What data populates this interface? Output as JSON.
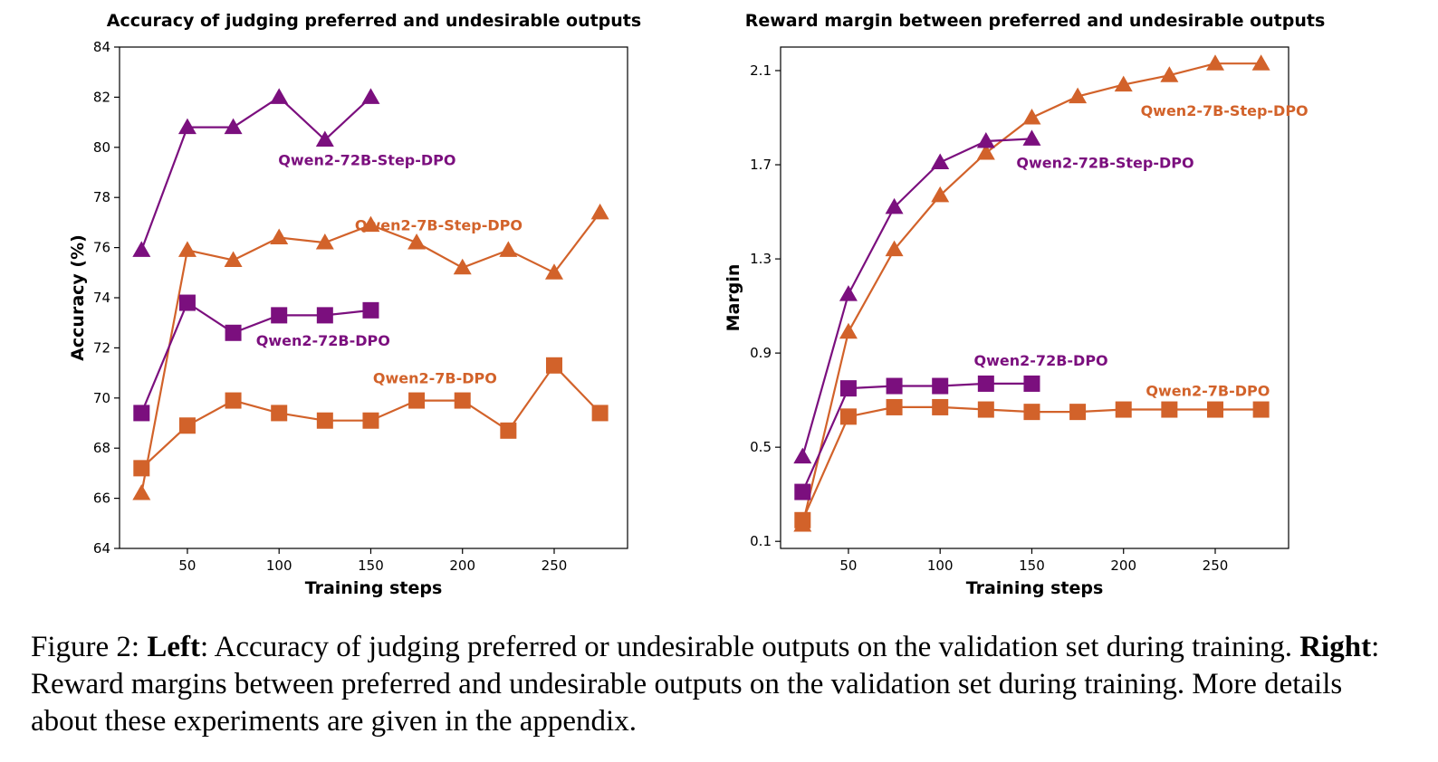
{
  "colors": {
    "purple": "#7b0f7e",
    "orange": "#d2622a"
  },
  "chart_data": [
    {
      "type": "line",
      "title": "Accuracy of judging preferred and undesirable outputs",
      "xlabel": "Training steps",
      "ylabel": "Accuracy (%)",
      "xlim": [
        13,
        290
      ],
      "ylim": [
        64,
        84
      ],
      "xticks": [
        50,
        100,
        150,
        200,
        250
      ],
      "yticks": [
        64,
        66,
        68,
        70,
        72,
        74,
        76,
        78,
        80,
        82,
        84
      ],
      "series": [
        {
          "name": "Qwen2-72B-Step-DPO",
          "color": "purple",
          "marker": "triangle",
          "x": [
            25,
            50,
            75,
            100,
            125,
            150
          ],
          "y": [
            75.9,
            80.8,
            80.8,
            82.0,
            80.3,
            82.0
          ],
          "label_pos": [
            148,
            79.5
          ]
        },
        {
          "name": "Qwen2-7B-Step-DPO",
          "color": "orange",
          "marker": "triangle",
          "x": [
            25,
            50,
            75,
            100,
            125,
            150,
            175,
            200,
            225,
            250,
            275
          ],
          "y": [
            66.2,
            75.9,
            75.5,
            76.4,
            76.2,
            76.9,
            76.2,
            75.2,
            75.9,
            75.0,
            77.4
          ],
          "label_pos": [
            187,
            76.9
          ]
        },
        {
          "name": "Qwen2-72B-DPO",
          "color": "purple",
          "marker": "square",
          "x": [
            25,
            50,
            75,
            100,
            125,
            150
          ],
          "y": [
            69.4,
            73.8,
            72.6,
            73.3,
            73.3,
            73.5
          ],
          "label_pos": [
            124,
            72.3
          ]
        },
        {
          "name": "Qwen2-7B-DPO",
          "color": "orange",
          "marker": "square",
          "x": [
            25,
            50,
            75,
            100,
            125,
            150,
            175,
            200,
            225,
            250,
            275
          ],
          "y": [
            67.2,
            68.9,
            69.9,
            69.4,
            69.1,
            69.1,
            69.9,
            69.9,
            68.7,
            71.3,
            69.4
          ],
          "label_pos": [
            185,
            70.8
          ]
        }
      ]
    },
    {
      "type": "line",
      "title": "Reward margin between preferred and undesirable outputs",
      "xlabel": "Training steps",
      "ylabel": "Margin",
      "xlim": [
        13,
        290
      ],
      "ylim": [
        0.07,
        2.2
      ],
      "xticks": [
        50,
        100,
        150,
        200,
        250
      ],
      "yticks": [
        0.1,
        0.5,
        0.9,
        1.3,
        1.7,
        2.1
      ],
      "series": [
        {
          "name": "Qwen2-7B-Step-DPO",
          "color": "orange",
          "marker": "triangle",
          "x": [
            25,
            50,
            75,
            100,
            125,
            150,
            175,
            200,
            225,
            250,
            275
          ],
          "y": [
            0.17,
            0.99,
            1.34,
            1.57,
            1.75,
            1.9,
            1.99,
            2.04,
            2.08,
            2.13,
            2.13
          ],
          "label_pos": [
            255,
            1.93
          ]
        },
        {
          "name": "Qwen2-72B-Step-DPO",
          "color": "purple",
          "marker": "triangle",
          "x": [
            25,
            50,
            75,
            100,
            125,
            150
          ],
          "y": [
            0.46,
            1.15,
            1.52,
            1.71,
            1.8,
            1.81
          ],
          "label_pos": [
            190,
            1.71
          ]
        },
        {
          "name": "Qwen2-72B-DPO",
          "color": "purple",
          "marker": "square",
          "x": [
            25,
            50,
            75,
            100,
            125,
            150
          ],
          "y": [
            0.31,
            0.75,
            0.76,
            0.76,
            0.77,
            0.77
          ],
          "label_pos": [
            155,
            0.87
          ]
        },
        {
          "name": "Qwen2-7B-DPO",
          "color": "orange",
          "marker": "square",
          "x": [
            25,
            50,
            75,
            100,
            125,
            150,
            175,
            200,
            225,
            250,
            275
          ],
          "y": [
            0.19,
            0.63,
            0.67,
            0.67,
            0.66,
            0.65,
            0.65,
            0.66,
            0.66,
            0.66,
            0.66
          ],
          "label_pos": [
            246,
            0.74
          ]
        }
      ]
    }
  ],
  "caption": {
    "prefix": "Figure 2: ",
    "left_label": "Left",
    "left_text": ": Accuracy of judging preferred or undesirable outputs on the validation set during training. ",
    "right_label": "Right",
    "right_text": ": Reward margins between preferred and undesirable outputs on the validation set during training. More details about these experiments are given in the appendix."
  }
}
